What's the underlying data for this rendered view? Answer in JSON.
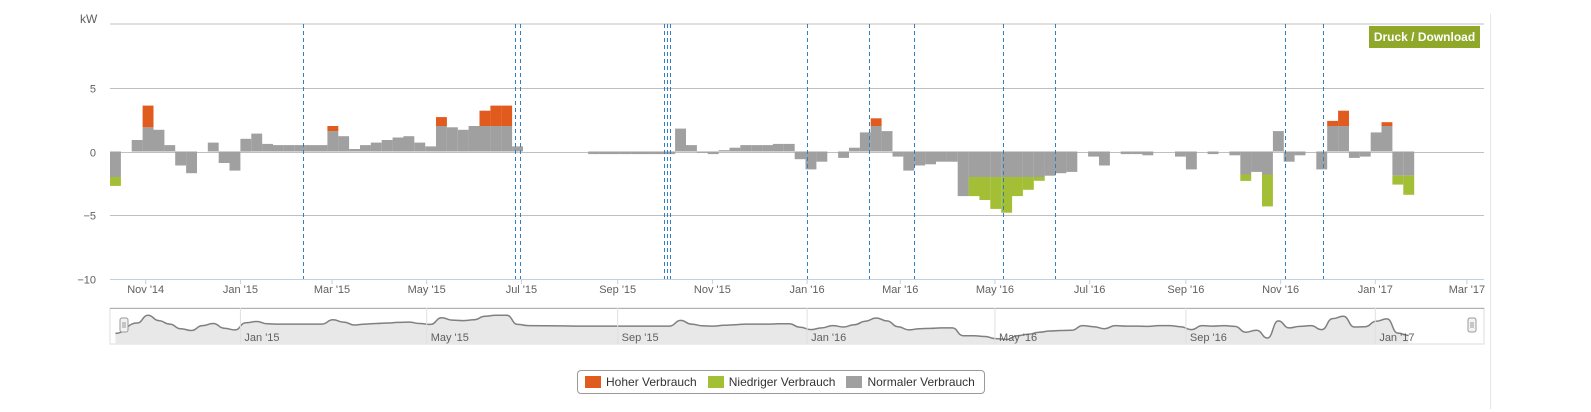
{
  "toolbar": {
    "download_label": "Druck / Download"
  },
  "legend": {
    "items": [
      {
        "label": "Hoher Verbrauch",
        "color": "#e15a1e"
      },
      {
        "label": "Niedriger Verbrauch",
        "color": "#a3bf35"
      },
      {
        "label": "Normaler Verbrauch",
        "color": "#a0a0a0"
      }
    ]
  },
  "chart_data": {
    "type": "bar",
    "stacked": true,
    "ylabel": "kW",
    "ylim": [
      -10,
      10
    ],
    "yticks": [
      5,
      0,
      -5,
      -10
    ],
    "ytick_labels": [
      "5",
      "0",
      "−5",
      "−10"
    ],
    "xlim": [
      "2014-10-09",
      "2017-03-12"
    ],
    "xticks": [
      "2014-11-01",
      "2015-01-01",
      "2015-03-01",
      "2015-05-01",
      "2015-07-01",
      "2015-09-01",
      "2015-11-01",
      "2016-01-01",
      "2016-03-01",
      "2016-05-01",
      "2016-07-01",
      "2016-09-01",
      "2016-11-01",
      "2017-01-01",
      "2017-03-01"
    ],
    "xtick_labels": [
      "Nov '14",
      "Jan '15",
      "Mar '15",
      "May '15",
      "Jul '15",
      "Sep '15",
      "Nov '15",
      "Jan '16",
      "Mar '16",
      "May '16",
      "Jul '16",
      "Sep '16",
      "Nov '16",
      "Jan '17",
      "Mar '17"
    ],
    "grid": true,
    "legend_position": "bottom",
    "series": [
      {
        "name": "Normaler Verbrauch",
        "color": "#a0a0a0",
        "x": [
          "2014-10-09",
          "2014-10-23",
          "2014-10-30",
          "2014-11-06",
          "2014-11-13",
          "2014-11-20",
          "2014-11-27",
          "2014-12-04",
          "2014-12-11",
          "2014-12-18",
          "2014-12-25",
          "2015-01-01",
          "2015-01-08",
          "2015-01-15",
          "2015-01-22",
          "2015-01-29",
          "2015-02-05",
          "2015-02-12",
          "2015-02-19",
          "2015-02-26",
          "2015-03-05",
          "2015-03-12",
          "2015-03-19",
          "2015-03-26",
          "2015-04-02",
          "2015-04-09",
          "2015-04-16",
          "2015-04-23",
          "2015-04-30",
          "2015-05-07",
          "2015-05-14",
          "2015-05-21",
          "2015-05-28",
          "2015-06-04",
          "2015-06-11",
          "2015-06-18",
          "2015-06-25",
          "2015-07-02",
          "2015-08-13",
          "2015-08-20",
          "2015-08-27",
          "2015-09-03",
          "2015-09-10",
          "2015-09-17",
          "2015-09-24",
          "2015-10-01",
          "2015-10-08",
          "2015-10-15",
          "2015-10-22",
          "2015-10-29",
          "2015-11-05",
          "2015-11-12",
          "2015-11-19",
          "2015-11-26",
          "2015-12-03",
          "2015-12-10",
          "2015-12-17",
          "2015-12-24",
          "2015-12-31",
          "2016-01-07",
          "2016-01-14",
          "2016-01-21",
          "2016-01-28",
          "2016-02-04",
          "2016-02-11",
          "2016-02-18",
          "2016-02-25",
          "2016-03-03",
          "2016-03-10",
          "2016-03-17",
          "2016-03-24",
          "2016-03-31",
          "2016-04-07",
          "2016-04-14",
          "2016-04-21",
          "2016-04-28",
          "2016-05-05",
          "2016-05-12",
          "2016-05-19",
          "2016-05-26",
          "2016-06-02",
          "2016-06-09",
          "2016-06-16",
          "2016-06-23",
          "2016-06-30",
          "2016-07-07",
          "2016-07-14",
          "2016-07-21",
          "2016-07-28",
          "2016-08-04",
          "2016-08-11",
          "2016-08-18",
          "2016-08-25",
          "2016-09-01",
          "2016-09-08",
          "2016-09-15",
          "2016-09-22",
          "2016-09-29",
          "2016-10-06",
          "2016-10-13",
          "2016-10-20",
          "2016-10-27",
          "2016-11-03",
          "2016-11-10",
          "2016-11-17",
          "2016-11-24",
          "2016-12-01",
          "2016-12-08",
          "2016-12-15",
          "2016-12-22",
          "2016-12-29",
          "2017-01-05",
          "2017-01-12",
          "2017-01-19"
        ],
        "values": [
          -2.0,
          0.9,
          1.9,
          1.7,
          0.5,
          -1.1,
          -1.7,
          0.0,
          0.7,
          -0.9,
          -1.5,
          1.0,
          1.4,
          0.6,
          0.5,
          0.5,
          0.5,
          0.5,
          0.5,
          1.6,
          1.2,
          0.2,
          0.5,
          0.7,
          0.9,
          1.1,
          1.2,
          0.7,
          0.4,
          2.0,
          1.9,
          1.7,
          2.0,
          2.0,
          2.0,
          2.0,
          0.4,
          0.0,
          -0.2,
          -0.2,
          -0.2,
          -0.2,
          -0.2,
          -0.2,
          -0.2,
          -0.2,
          1.8,
          0.5,
          -0.1,
          -0.2,
          0.1,
          0.3,
          0.5,
          0.5,
          0.5,
          0.6,
          0.6,
          -0.6,
          -1.4,
          -0.8,
          0.0,
          -0.5,
          0.3,
          1.5,
          2.0,
          1.6,
          -0.4,
          -1.5,
          -1.1,
          -1.0,
          -0.8,
          -0.8,
          -3.5,
          -2.0,
          -2.0,
          -2.0,
          -2.0,
          -2.0,
          -2.0,
          -2.0,
          -1.9,
          -1.7,
          -1.6,
          0.0,
          -0.4,
          -1.1,
          0.0,
          -0.2,
          -0.2,
          -0.3,
          0.0,
          0.0,
          -0.4,
          -1.4,
          0.0,
          -0.2,
          0.0,
          -0.3,
          -1.8,
          -1.6,
          -1.8,
          1.6,
          -0.8,
          -0.3,
          0.0,
          -1.4,
          2.0,
          2.0,
          -0.5,
          -0.4,
          1.5,
          2.0,
          -1.9,
          -1.9
        ]
      },
      {
        "name": "Hoher Verbrauch",
        "color": "#e15a1e",
        "x": [
          "2014-10-30",
          "2015-02-26",
          "2015-05-07",
          "2015-06-04",
          "2015-06-11",
          "2015-06-18",
          "2016-02-11",
          "2016-12-01",
          "2016-12-08",
          "2017-01-05"
        ],
        "values": [
          1.7,
          0.4,
          0.7,
          1.2,
          1.6,
          1.6,
          0.6,
          0.4,
          1.2,
          0.3
        ]
      },
      {
        "name": "Niedriger Verbrauch",
        "color": "#a3bf35",
        "x": [
          "2014-10-09",
          "2016-04-14",
          "2016-04-21",
          "2016-04-28",
          "2016-05-05",
          "2016-05-12",
          "2016-05-19",
          "2016-05-26",
          "2016-10-06",
          "2016-10-20",
          "2017-01-12",
          "2017-01-19"
        ],
        "values": [
          -0.7,
          -1.5,
          -1.8,
          -2.5,
          -2.8,
          -1.5,
          -1.0,
          -0.3,
          -0.5,
          -2.5,
          -0.7,
          -1.5
        ]
      }
    ],
    "bar_width_days": 7,
    "markers_x": [
      "2015-02-10",
      "2015-06-27",
      "2015-06-30",
      "2015-10-01",
      "2015-10-03",
      "2015-10-05",
      "2016-01-01",
      "2016-02-10",
      "2016-03-10",
      "2016-05-06",
      "2016-06-09",
      "2016-11-04",
      "2016-11-28"
    ],
    "navigator": {
      "xtick_labels": [
        "Jan '15",
        "May '15",
        "Sep '15",
        "Jan '16",
        "May '16",
        "Sep '16",
        "Jan '17"
      ],
      "xticks": [
        "2015-01-01",
        "2015-05-01",
        "2015-09-01",
        "2016-01-01",
        "2016-05-01",
        "2016-09-01",
        "2017-01-01"
      ]
    }
  }
}
